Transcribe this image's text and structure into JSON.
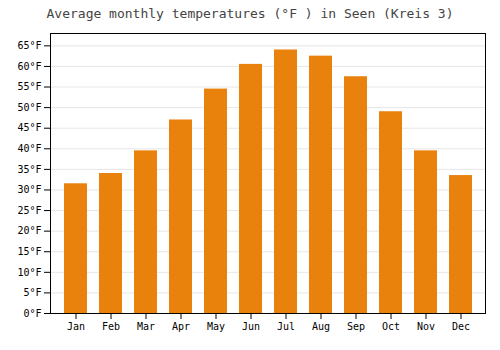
{
  "chart_data": {
    "type": "bar",
    "title": "Average monthly temperatures (°F ) in Seen (Kreis 3)",
    "categories": [
      "Jan",
      "Feb",
      "Mar",
      "Apr",
      "May",
      "Jun",
      "Jul",
      "Aug",
      "Sep",
      "Oct",
      "Nov",
      "Dec"
    ],
    "values": [
      31.5,
      34.0,
      39.5,
      47.0,
      54.5,
      60.5,
      64.0,
      62.5,
      57.5,
      49.0,
      39.5,
      33.5
    ],
    "color": "#E8820C",
    "ylim": [
      0,
      68
    ],
    "yticks": [
      {
        "value": 0,
        "label": "0°F"
      },
      {
        "value": 5,
        "label": "5°F"
      },
      {
        "value": 10,
        "label": "10°F"
      },
      {
        "value": 15,
        "label": "15°F"
      },
      {
        "value": 20,
        "label": "20°F"
      },
      {
        "value": 25,
        "label": "25°F"
      },
      {
        "value": 30,
        "label": "30°F"
      },
      {
        "value": 35,
        "label": "35°F"
      },
      {
        "value": 40,
        "label": "40°F"
      },
      {
        "value": 45,
        "label": "45°F"
      },
      {
        "value": 50,
        "label": "50°F"
      },
      {
        "value": 55,
        "label": "55°F"
      },
      {
        "value": 60,
        "label": "60°F"
      },
      {
        "value": 65,
        "label": "65°F"
      }
    ],
    "grid": true
  }
}
